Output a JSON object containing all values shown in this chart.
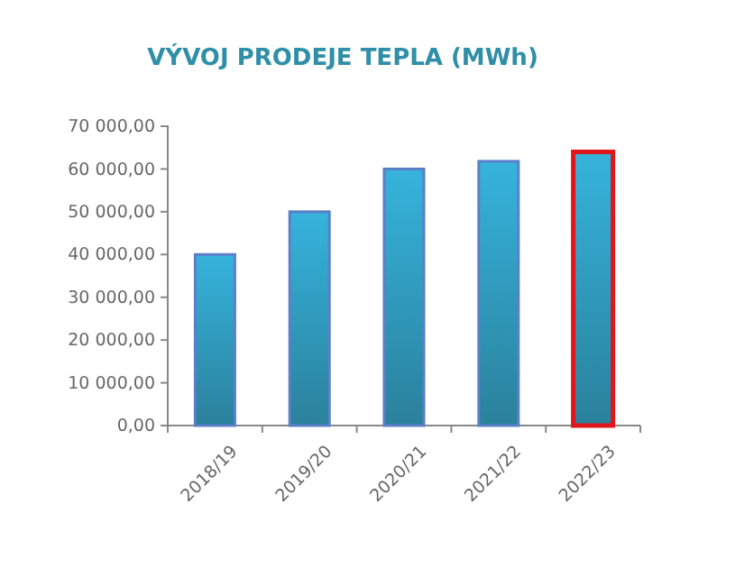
{
  "chart_data": {
    "type": "bar",
    "title": "VÝVOJ PRODEJE TEPLA (MWh)",
    "categories": [
      "2018/19",
      "2019/20",
      "2020/21",
      "2021/22",
      "2022/23"
    ],
    "values": [
      40000,
      50000,
      60000,
      61800,
      64000
    ],
    "colors": [
      "#5b7fc8",
      "#5b7fc8",
      "#5b7fc8",
      "#5b7fc8",
      "#e0161b"
    ],
    "ylim": [
      0,
      70000
    ],
    "yticks": [
      {
        "value": 0,
        "label": "0,00"
      },
      {
        "value": 10000,
        "label": "10 000,00"
      },
      {
        "value": 20000,
        "label": "20 000,00"
      },
      {
        "value": 30000,
        "label": "30 000,00"
      },
      {
        "value": 40000,
        "label": "40 000,00"
      },
      {
        "value": 50000,
        "label": "50 000,00"
      },
      {
        "value": 60000,
        "label": "60 000,00"
      },
      {
        "value": 70000,
        "label": "70 000,00"
      }
    ],
    "grid": false
  }
}
